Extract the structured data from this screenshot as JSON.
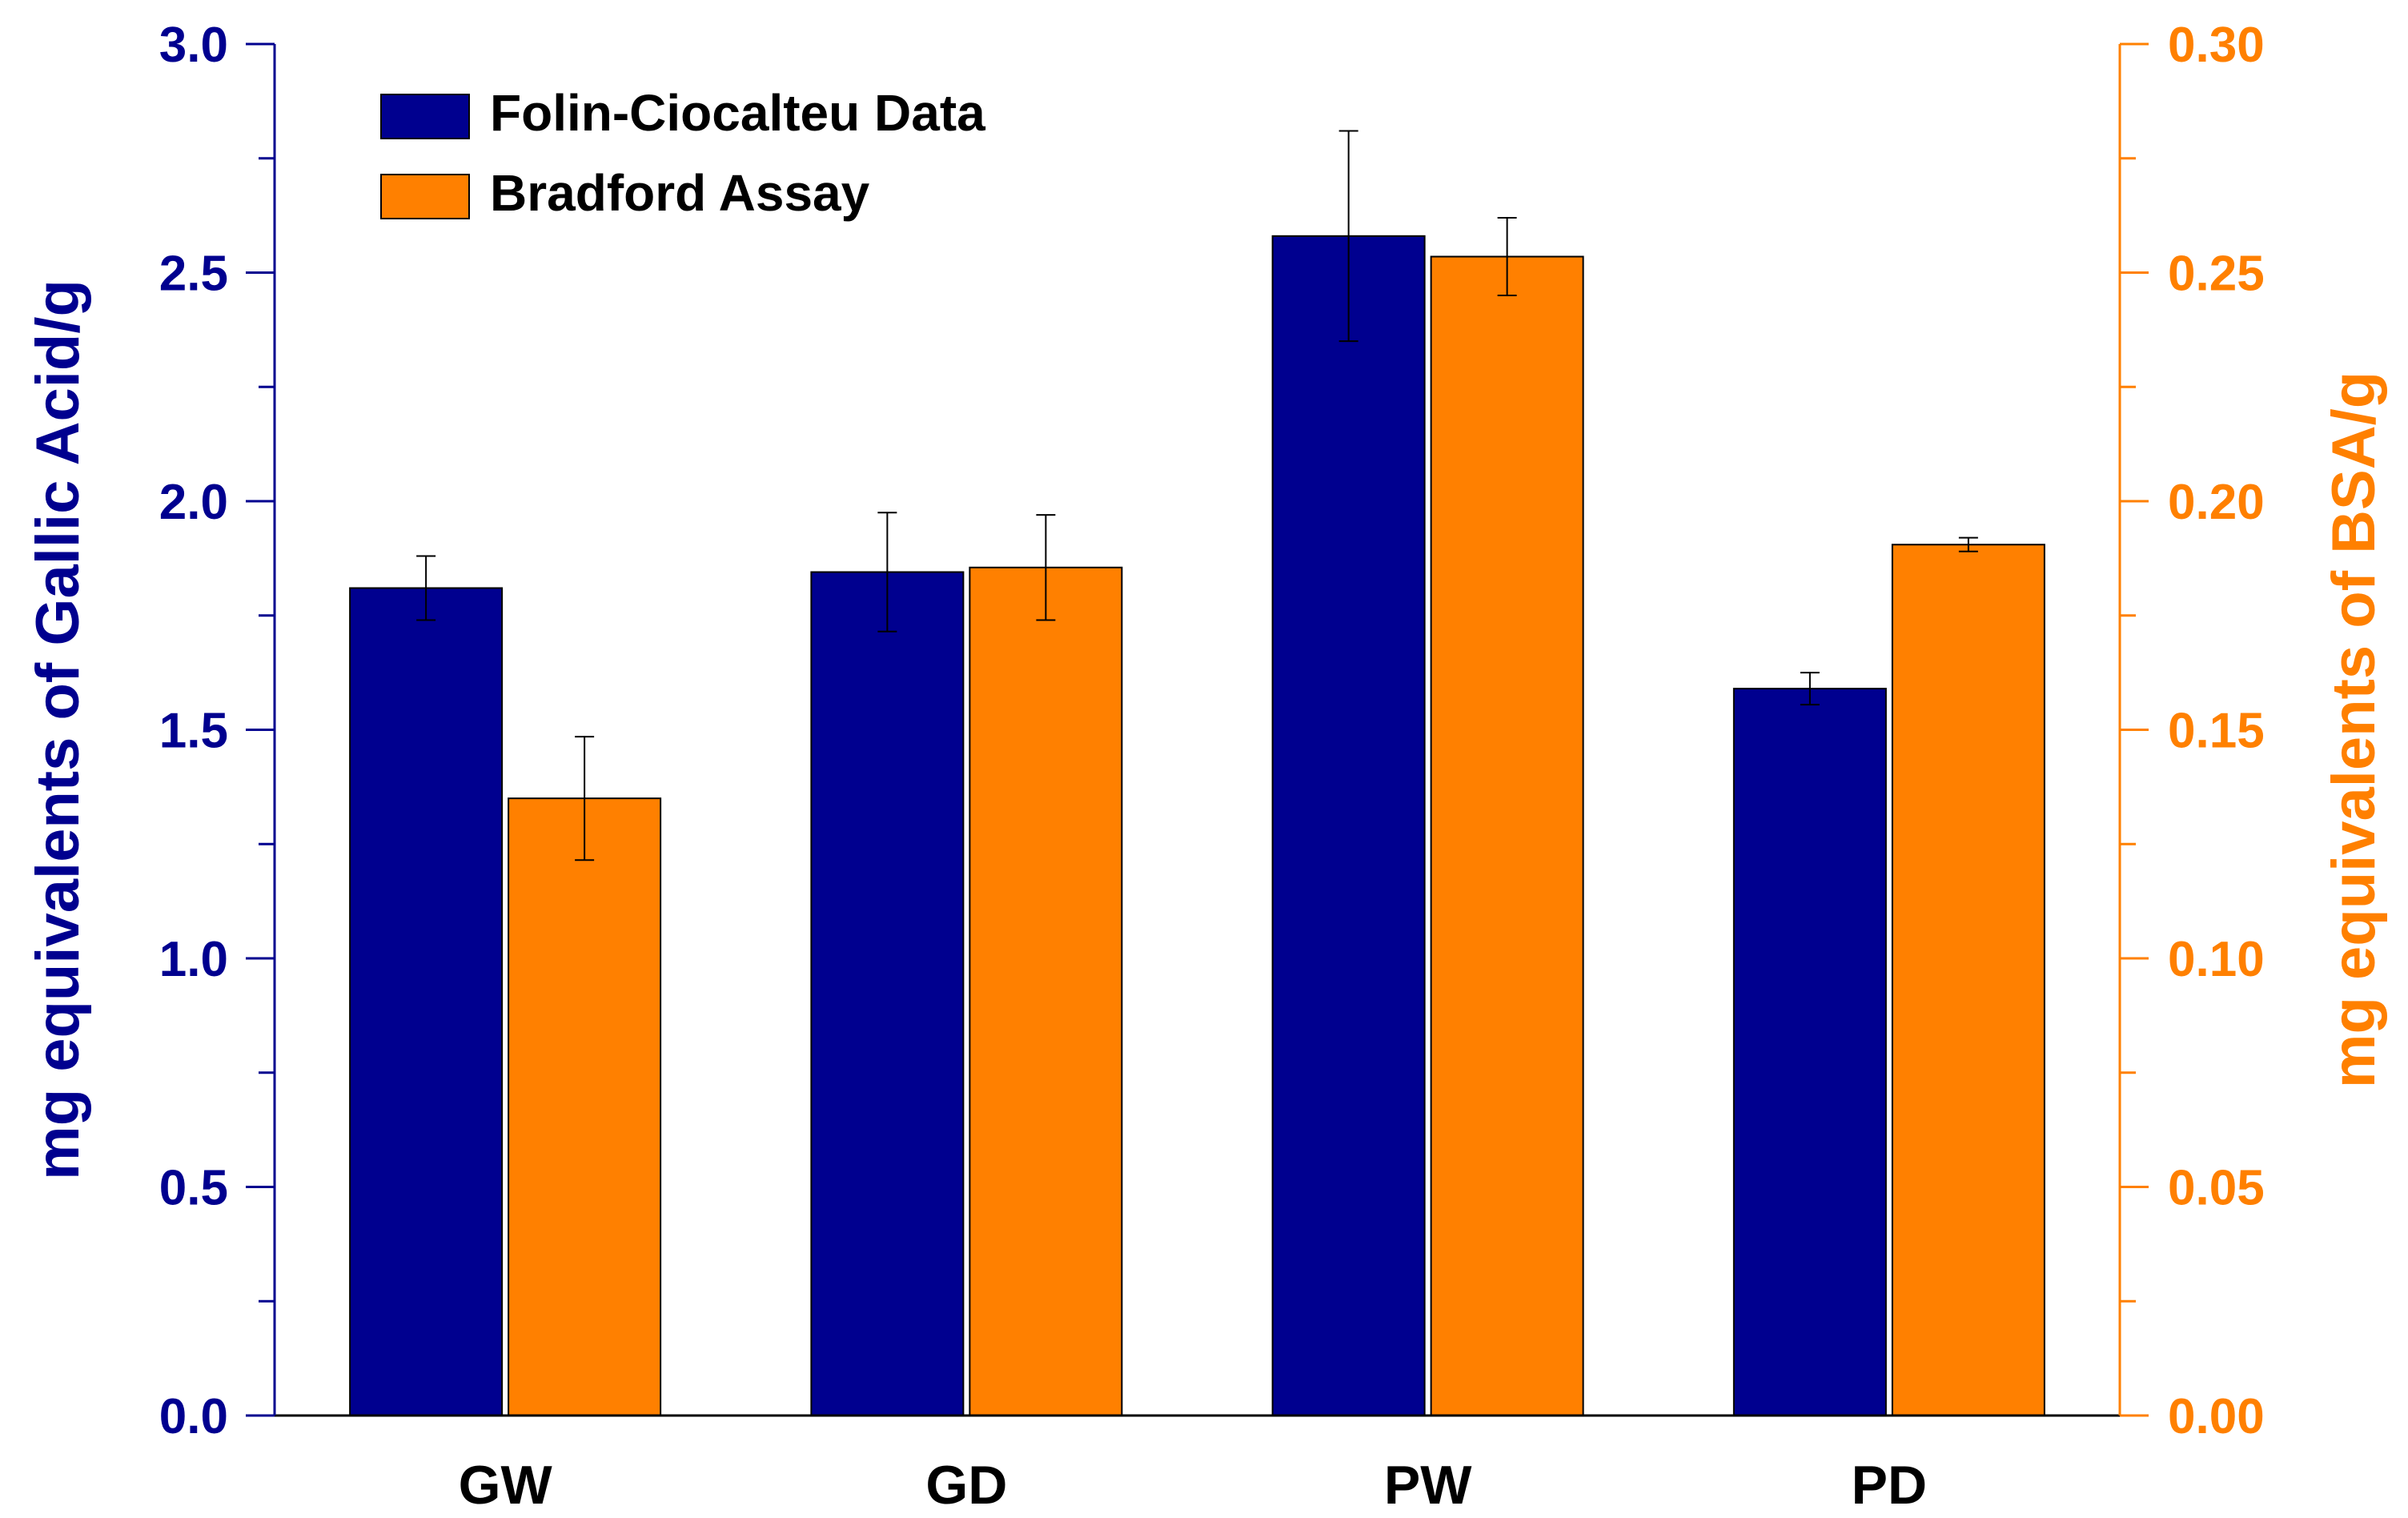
{
  "chart_data": {
    "type": "bar",
    "categories": [
      "GW",
      "GD",
      "PW",
      "PD"
    ],
    "left_axis": {
      "label": "mg equivalents of Gallic Acid/g",
      "ylim": [
        0,
        3.0
      ],
      "ticks": [
        0.0,
        0.5,
        1.0,
        1.5,
        2.0,
        2.5,
        3.0
      ],
      "tick_labels": [
        "0.0",
        "0.5",
        "1.0",
        "1.5",
        "2.0",
        "2.5",
        "3.0"
      ],
      "color": "#00008f"
    },
    "right_axis": {
      "label": "mg equivalents of BSA/g",
      "ylim": [
        0,
        0.3
      ],
      "ticks": [
        0.0,
        0.05,
        0.1,
        0.15,
        0.2,
        0.25,
        0.3
      ],
      "tick_labels": [
        "0.00",
        "0.05",
        "0.10",
        "0.15",
        "0.20",
        "0.25",
        "0.30"
      ],
      "color": "#ff8000"
    },
    "series": [
      {
        "name": "Folin-Ciocalteu Data",
        "axis": "left",
        "color": "#00008f",
        "values": [
          1.81,
          1.845,
          2.58,
          1.59
        ],
        "errors": [
          0.07,
          0.13,
          0.23,
          0.035
        ]
      },
      {
        "name": "Bradford Assay",
        "axis": "right",
        "color": "#ff8000",
        "values": [
          0.135,
          0.1855,
          0.2535,
          0.1905
        ],
        "errors": [
          0.0135,
          0.0115,
          0.0085,
          0.0015
        ]
      }
    ],
    "legend": {
      "position": "top-left"
    },
    "grid": false
  }
}
